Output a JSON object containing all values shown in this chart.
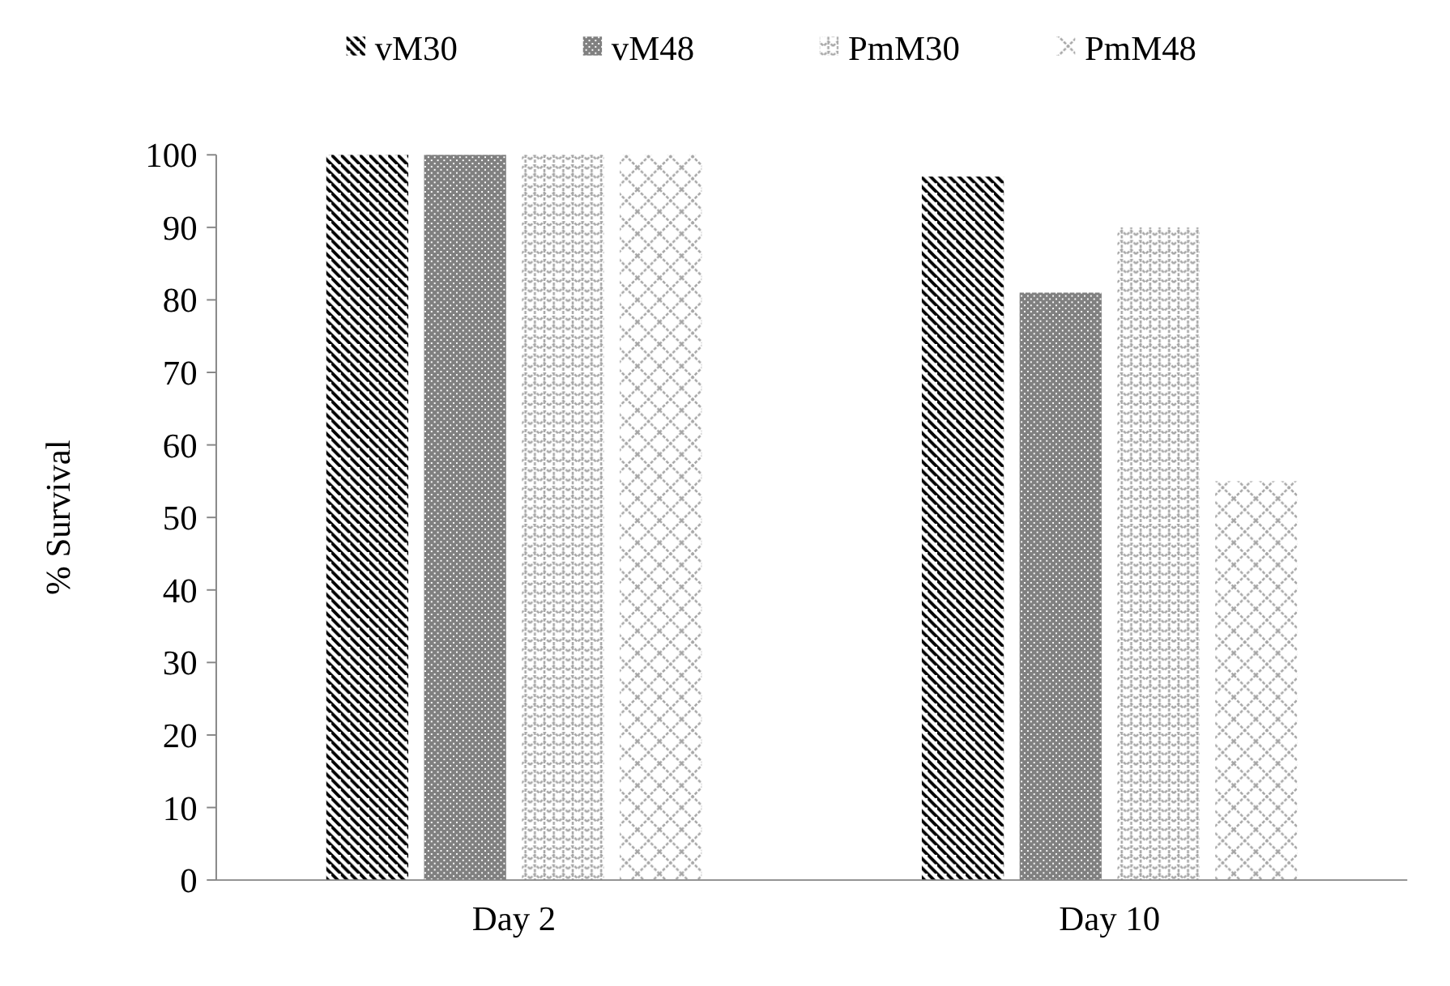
{
  "chart_data": {
    "type": "bar",
    "ylabel": "% Survival",
    "categories": [
      "Day 2",
      "Day 10"
    ],
    "series": [
      {
        "name": "vM30",
        "color": "#000000",
        "values": [
          100,
          97
        ]
      },
      {
        "name": "vM48",
        "color": "#808080",
        "values": [
          100,
          81
        ]
      },
      {
        "name": "PmM30",
        "color": "#a6a6a6",
        "values": [
          100,
          90
        ]
      },
      {
        "name": "PmM48",
        "color": "#a6a6a6",
        "values": [
          100,
          55
        ]
      }
    ],
    "ylim": [
      0,
      100
    ],
    "yticks": [
      0,
      10,
      20,
      30,
      40,
      50,
      60,
      70,
      80,
      90,
      100
    ],
    "grid": false,
    "legend": "top"
  }
}
